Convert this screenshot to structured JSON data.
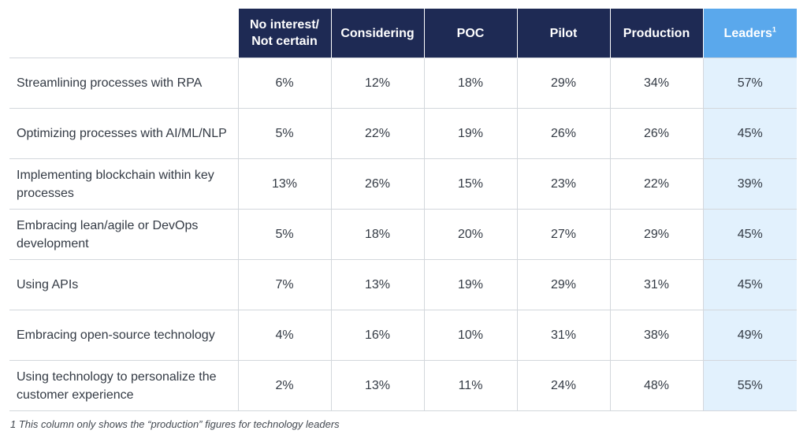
{
  "chart_data": {
    "type": "table",
    "columns": [
      "No interest/ Not certain",
      "Considering",
      "POC",
      "Pilot",
      "Production",
      "Leaders"
    ],
    "leaders_superscript": "1",
    "rows": [
      {
        "label": "Streamlining processes with RPA",
        "values": [
          "6%",
          "12%",
          "18%",
          "29%",
          "34%",
          "57%"
        ]
      },
      {
        "label": "Optimizing processes with AI/ML/NLP",
        "values": [
          "5%",
          "22%",
          "19%",
          "26%",
          "26%",
          "45%"
        ]
      },
      {
        "label": "Implementing blockchain within key processes",
        "values": [
          "13%",
          "26%",
          "15%",
          "23%",
          "22%",
          "39%"
        ]
      },
      {
        "label": "Embracing lean/agile or DevOps development",
        "values": [
          "5%",
          "18%",
          "20%",
          "27%",
          "29%",
          "45%"
        ]
      },
      {
        "label": "Using APIs",
        "values": [
          "7%",
          "13%",
          "19%",
          "29%",
          "31%",
          "45%"
        ]
      },
      {
        "label": "Embracing open-source technology",
        "values": [
          "4%",
          "16%",
          "10%",
          "31%",
          "38%",
          "49%"
        ]
      },
      {
        "label": "Using technology to personalize the customer experience",
        "values": [
          "2%",
          "13%",
          "11%",
          "24%",
          "48%",
          "55%"
        ]
      }
    ],
    "footnote": "1 This column only shows the “production” figures for technology leaders",
    "colors": {
      "header": "#1e2a54",
      "leaders_header": "#5aa8ec",
      "leaders_cell": "#e2f1fd",
      "grid": "#d3d7dc",
      "text": "#333a44"
    }
  }
}
